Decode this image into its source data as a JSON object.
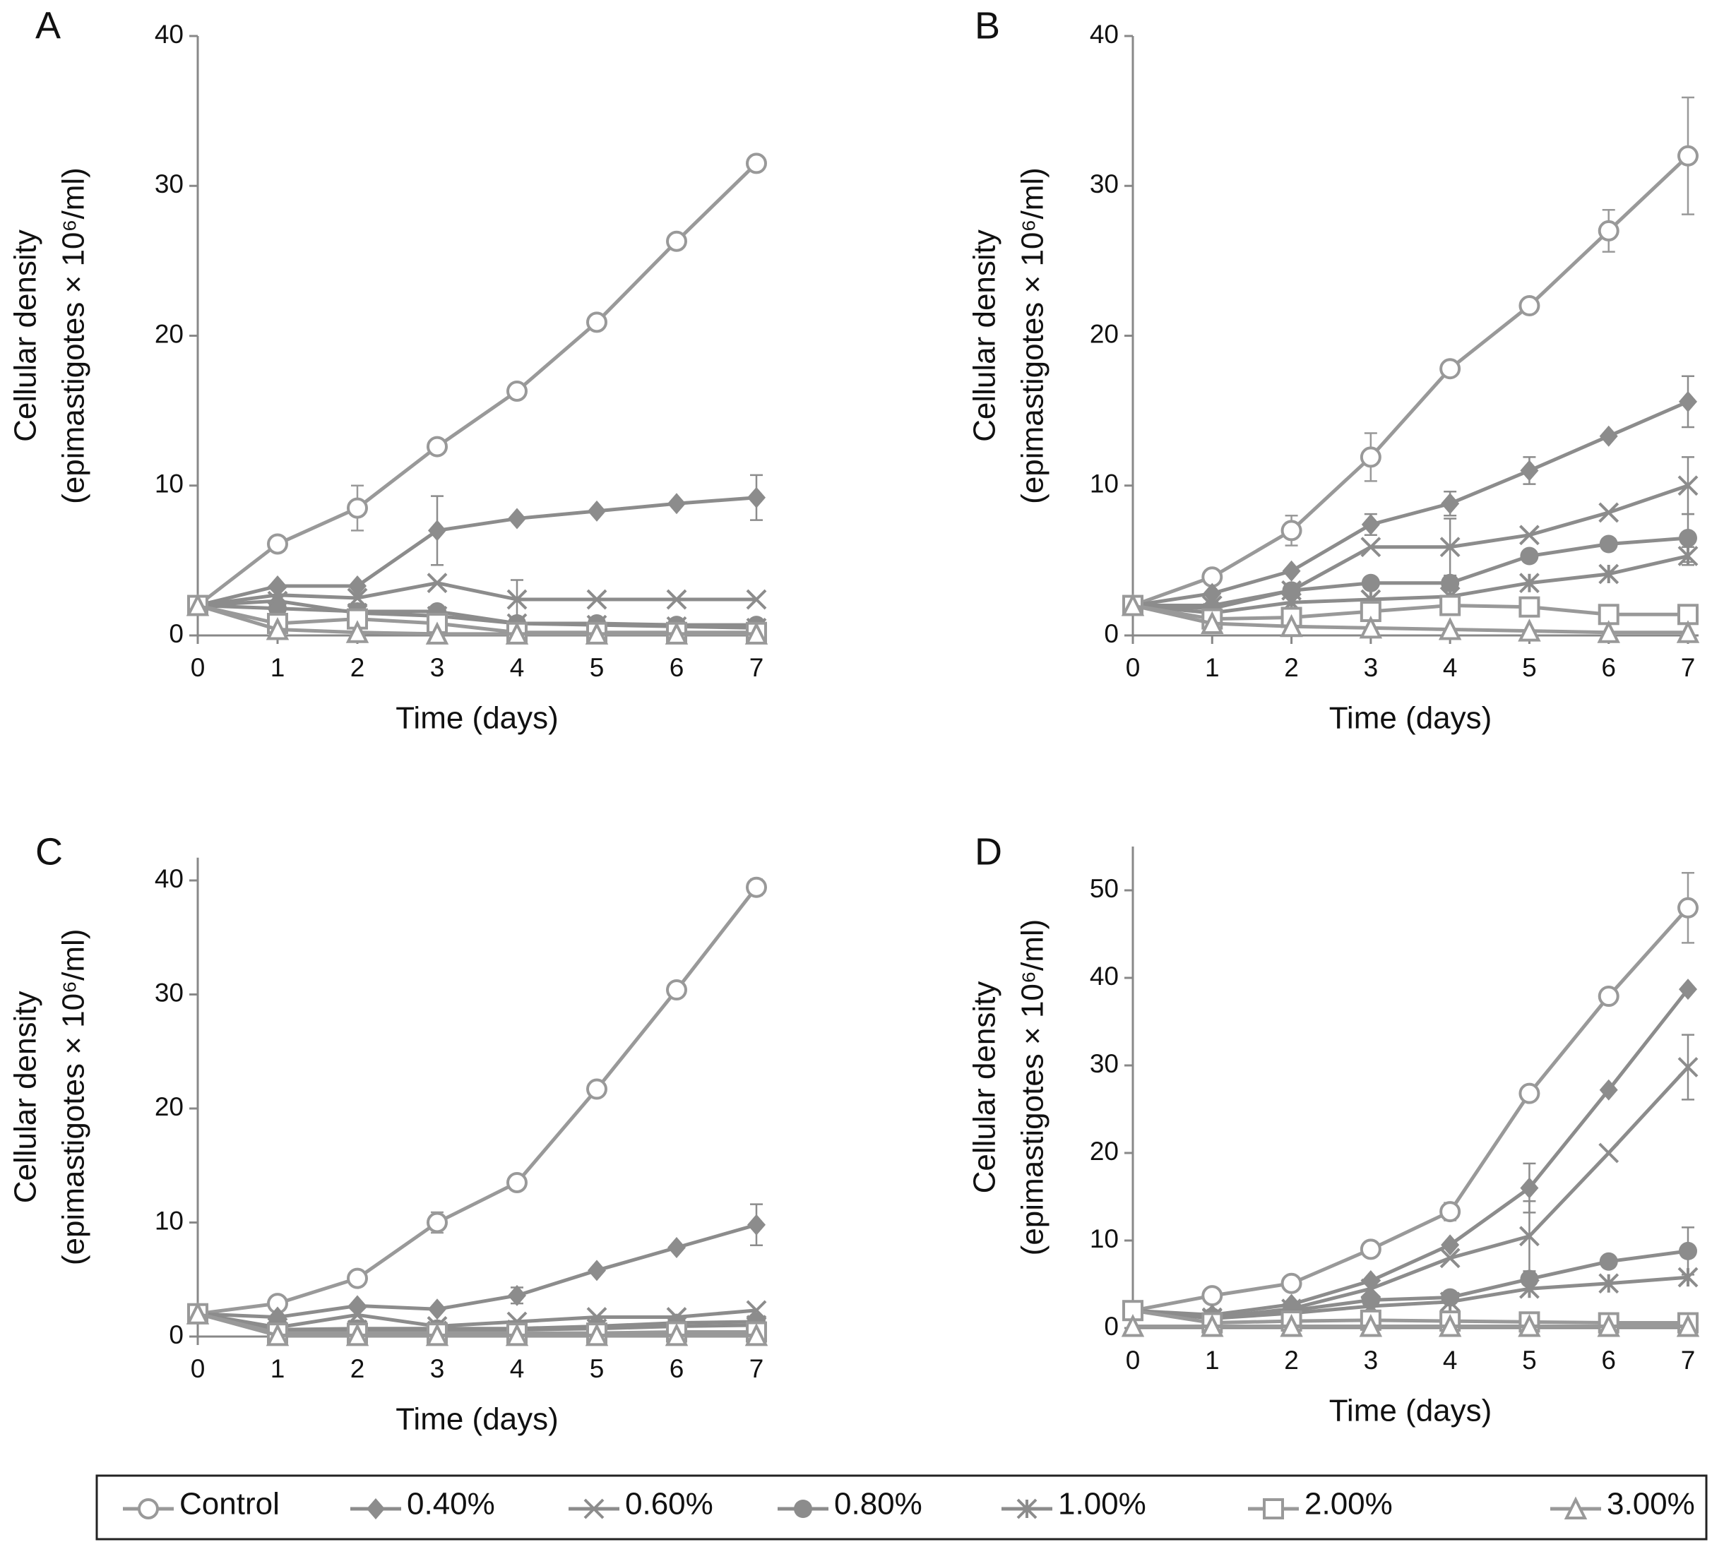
{
  "chart_data": [
    {
      "type": "line",
      "panel_label": "A",
      "x_label": "Time (days)",
      "y_label": [
        "Cellular density",
        "(epimastigotes × 10⁶/ml)"
      ],
      "x": [
        0,
        1,
        2,
        3,
        4,
        5,
        6,
        7
      ],
      "xlim": [
        0,
        7
      ],
      "xticks": [
        0,
        1,
        2,
        3,
        4,
        5,
        6,
        7
      ],
      "ylim": [
        0,
        40
      ],
      "yticks": [
        0,
        10,
        20,
        30,
        40
      ],
      "series": [
        {
          "name": "Control",
          "color": "#999999",
          "marker": "circle-open",
          "values": [
            2,
            6.1,
            8.5,
            12.6,
            16.3,
            20.9,
            26.3,
            31.5
          ],
          "errors": [
            null,
            null,
            1.5,
            null,
            null,
            null,
            null,
            null
          ]
        },
        {
          "name": "0.40%",
          "color": "#8c8c8c",
          "marker": "diamond",
          "values": [
            2,
            3.3,
            3.3,
            7,
            7.8,
            8.3,
            8.8,
            9.2
          ],
          "errors": [
            null,
            null,
            null,
            2.3,
            null,
            null,
            null,
            1.5
          ]
        },
        {
          "name": "0.60%",
          "color": "#8c8c8c",
          "marker": "x",
          "values": [
            2,
            2.7,
            2.5,
            3.5,
            2.4,
            2.4,
            2.4,
            2.4
          ],
          "errors": [
            null,
            null,
            null,
            null,
            1.3,
            null,
            null,
            null
          ]
        },
        {
          "name": "0.80%",
          "color": "#8c8c8c",
          "marker": "circle",
          "values": [
            2,
            1.8,
            1.6,
            1.6,
            0.8,
            0.8,
            0.7,
            0.7
          ],
          "errors": [
            null,
            null,
            null,
            null,
            null,
            null,
            null,
            null
          ]
        },
        {
          "name": "1.00%",
          "color": "#8c8c8c",
          "marker": "asterisk",
          "values": [
            2,
            2.3,
            1.5,
            1.3,
            0.8,
            0.7,
            0.6,
            0.5
          ],
          "errors": [
            null,
            null,
            null,
            null,
            null,
            null,
            null,
            null
          ]
        },
        {
          "name": "2.00%",
          "color": "#999999",
          "marker": "square-open",
          "values": [
            2,
            0.8,
            1.1,
            0.8,
            0.2,
            0.2,
            0.2,
            0.2
          ],
          "errors": [
            null,
            null,
            null,
            null,
            null,
            null,
            null,
            null
          ]
        },
        {
          "name": "3.00%",
          "color": "#999999",
          "marker": "triangle-open",
          "values": [
            2,
            0.4,
            0.2,
            0.1,
            0.1,
            0.1,
            0.1,
            0.1
          ],
          "errors": [
            null,
            null,
            null,
            null,
            null,
            null,
            null,
            null
          ]
        }
      ]
    },
    {
      "type": "line",
      "panel_label": "B",
      "x_label": "Time (days)",
      "y_label": [
        "Cellular density",
        "(epimastigotes × 10⁶/ml)"
      ],
      "x": [
        0,
        1,
        2,
        3,
        4,
        5,
        6,
        7
      ],
      "xlim": [
        0,
        7
      ],
      "xticks": [
        0,
        1,
        2,
        3,
        4,
        5,
        6,
        7
      ],
      "ylim": [
        0,
        40
      ],
      "yticks": [
        0,
        10,
        20,
        30,
        40
      ],
      "series": [
        {
          "name": "Control",
          "color": "#999999",
          "marker": "circle-open",
          "values": [
            2,
            3.9,
            7,
            11.9,
            17.8,
            22,
            27,
            32
          ],
          "errors": [
            null,
            null,
            1,
            1.6,
            null,
            null,
            1.4,
            3.9
          ]
        },
        {
          "name": "0.40%",
          "color": "#8c8c8c",
          "marker": "diamond",
          "values": [
            2,
            2.8,
            4.3,
            7.4,
            8.8,
            11,
            13.3,
            15.6
          ],
          "errors": [
            null,
            null,
            null,
            0.7,
            0.8,
            0.9,
            null,
            1.7
          ]
        },
        {
          "name": "0.60%",
          "color": "#8c8c8c",
          "marker": "x",
          "values": [
            2,
            2,
            3,
            5.9,
            5.9,
            6.7,
            8.2,
            10
          ],
          "errors": [
            null,
            null,
            null,
            null,
            1.9,
            null,
            null,
            1.9
          ]
        },
        {
          "name": "0.80%",
          "color": "#8c8c8c",
          "marker": "circle",
          "values": [
            2,
            1.8,
            3,
            3.5,
            3.5,
            5.3,
            6.1,
            6.5
          ],
          "errors": [
            null,
            null,
            null,
            null,
            null,
            null,
            null,
            1.6
          ]
        },
        {
          "name": "1.00%",
          "color": "#8c8c8c",
          "marker": "asterisk",
          "values": [
            2,
            1.5,
            2.2,
            2.4,
            2.6,
            3.5,
            4.1,
            5.3
          ],
          "errors": [
            null,
            null,
            null,
            null,
            null,
            null,
            null,
            0.6
          ]
        },
        {
          "name": "2.00%",
          "color": "#999999",
          "marker": "square-open",
          "values": [
            2,
            1.1,
            1.2,
            1.6,
            2,
            1.9,
            1.4,
            1.4
          ],
          "errors": [
            null,
            null,
            null,
            null,
            null,
            null,
            null,
            null
          ]
        },
        {
          "name": "3.00%",
          "color": "#999999",
          "marker": "triangle-open",
          "values": [
            2,
            0.8,
            0.6,
            0.5,
            0.4,
            0.3,
            0.2,
            0.2
          ],
          "errors": [
            null,
            null,
            null,
            null,
            null,
            null,
            null,
            null
          ]
        }
      ]
    },
    {
      "type": "line",
      "panel_label": "C",
      "x_label": "Time (days)",
      "y_label": [
        "Cellular density",
        "(epimastigotes × 10⁶/ml)"
      ],
      "x": [
        0,
        1,
        2,
        3,
        4,
        5,
        6,
        7
      ],
      "xlim": [
        0,
        7
      ],
      "xticks": [
        0,
        1,
        2,
        3,
        4,
        5,
        6,
        7
      ],
      "ylim": [
        0,
        42
      ],
      "yticks": [
        0,
        10,
        20,
        30,
        40
      ],
      "series": [
        {
          "name": "Control",
          "color": "#999999",
          "marker": "circle-open",
          "values": [
            2,
            2.9,
            5.1,
            10,
            13.5,
            21.7,
            30.4,
            39.4
          ],
          "errors": [
            null,
            null,
            null,
            0.9,
            null,
            null,
            null,
            0.7
          ]
        },
        {
          "name": "0.40%",
          "color": "#8c8c8c",
          "marker": "diamond",
          "values": [
            2,
            1.7,
            2.7,
            2.4,
            3.6,
            5.8,
            7.8,
            9.8
          ],
          "errors": [
            null,
            null,
            null,
            null,
            0.7,
            null,
            null,
            1.8
          ]
        },
        {
          "name": "0.60%",
          "color": "#8c8c8c",
          "marker": "x",
          "values": [
            2,
            0.8,
            1.9,
            0.9,
            1.3,
            1.7,
            1.7,
            2.3
          ],
          "errors": [
            null,
            null,
            null,
            null,
            null,
            null,
            null,
            null
          ]
        },
        {
          "name": "0.80%",
          "color": "#8c8c8c",
          "marker": "circle",
          "values": [
            2,
            0.6,
            0.7,
            0.7,
            0.7,
            0.9,
            1.2,
            1.3
          ],
          "errors": [
            null,
            null,
            null,
            null,
            null,
            null,
            null,
            null
          ]
        },
        {
          "name": "1.00%",
          "color": "#8c8c8c",
          "marker": "asterisk",
          "values": [
            2,
            0.5,
            0.6,
            0.5,
            0.6,
            0.7,
            0.9,
            1.0
          ],
          "errors": [
            null,
            null,
            null,
            null,
            null,
            null,
            null,
            null
          ]
        },
        {
          "name": "2.00%",
          "color": "#999999",
          "marker": "square-open",
          "values": [
            2,
            0.3,
            0.3,
            0.3,
            0.3,
            0.3,
            0.4,
            0.4
          ],
          "errors": [
            null,
            null,
            null,
            null,
            null,
            null,
            null,
            null
          ]
        },
        {
          "name": "3.00%",
          "color": "#999999",
          "marker": "triangle-open",
          "values": [
            2,
            0.1,
            0.1,
            0.1,
            0.1,
            0.1,
            0.1,
            0.1
          ],
          "errors": [
            null,
            null,
            null,
            null,
            null,
            null,
            null,
            null
          ]
        }
      ]
    },
    {
      "type": "line",
      "panel_label": "D",
      "x_label": "Time (days)",
      "y_label": [
        "Cellular density",
        "(epimastigotes × 10⁶/ml)"
      ],
      "x": [
        0,
        1,
        2,
        3,
        4,
        5,
        6,
        7
      ],
      "xlim": [
        0,
        7
      ],
      "xticks": [
        0,
        1,
        2,
        3,
        4,
        5,
        6,
        7
      ],
      "ylim": [
        0,
        55
      ],
      "yticks": [
        0,
        10,
        20,
        30,
        40,
        50
      ],
      "series": [
        {
          "name": "Control",
          "color": "#999999",
          "marker": "circle-open",
          "values": [
            2,
            3.7,
            5.1,
            9,
            13.3,
            26.8,
            37.9,
            48
          ],
          "errors": [
            null,
            null,
            null,
            null,
            1,
            null,
            null,
            4
          ]
        },
        {
          "name": "0.40%",
          "color": "#8c8c8c",
          "marker": "diamond",
          "values": [
            2,
            1.5,
            2.7,
            5.4,
            9.5,
            16,
            27.2,
            38.7
          ],
          "errors": [
            null,
            null,
            null,
            null,
            null,
            2.8,
            null,
            null
          ]
        },
        {
          "name": "0.60%",
          "color": "#8c8c8c",
          "marker": "x",
          "values": [
            2,
            1.2,
            2.2,
            4.5,
            8,
            10.5,
            20,
            29.8
          ],
          "errors": [
            null,
            null,
            null,
            null,
            null,
            4,
            null,
            3.7
          ]
        },
        {
          "name": "0.80%",
          "color": "#8c8c8c",
          "marker": "circle",
          "values": [
            2,
            1.3,
            2,
            3.2,
            3.5,
            5.6,
            7.6,
            8.8
          ],
          "errors": [
            null,
            null,
            null,
            null,
            null,
            null,
            null,
            2.7
          ]
        },
        {
          "name": "1.00%",
          "color": "#8c8c8c",
          "marker": "asterisk",
          "values": [
            2,
            1.1,
            1.7,
            2.5,
            3,
            4.5,
            5.1,
            5.8
          ],
          "errors": [
            null,
            null,
            null,
            null,
            null,
            null,
            null,
            null
          ]
        },
        {
          "name": "2.00%",
          "color": "#999999",
          "marker": "square-open",
          "values": [
            2,
            0.6,
            0.8,
            0.9,
            0.8,
            0.7,
            0.6,
            0.6
          ],
          "errors": [
            null,
            null,
            null,
            null,
            null,
            null,
            null,
            null
          ]
        },
        {
          "name": "3.00%",
          "color": "#999999",
          "marker": "triangle-open",
          "values": [
            0.2,
            0.2,
            0.2,
            0.2,
            0.2,
            0.2,
            0.2,
            0.2
          ],
          "errors": [
            null,
            null,
            null,
            null,
            null,
            null,
            null,
            null
          ]
        }
      ]
    }
  ]
}
